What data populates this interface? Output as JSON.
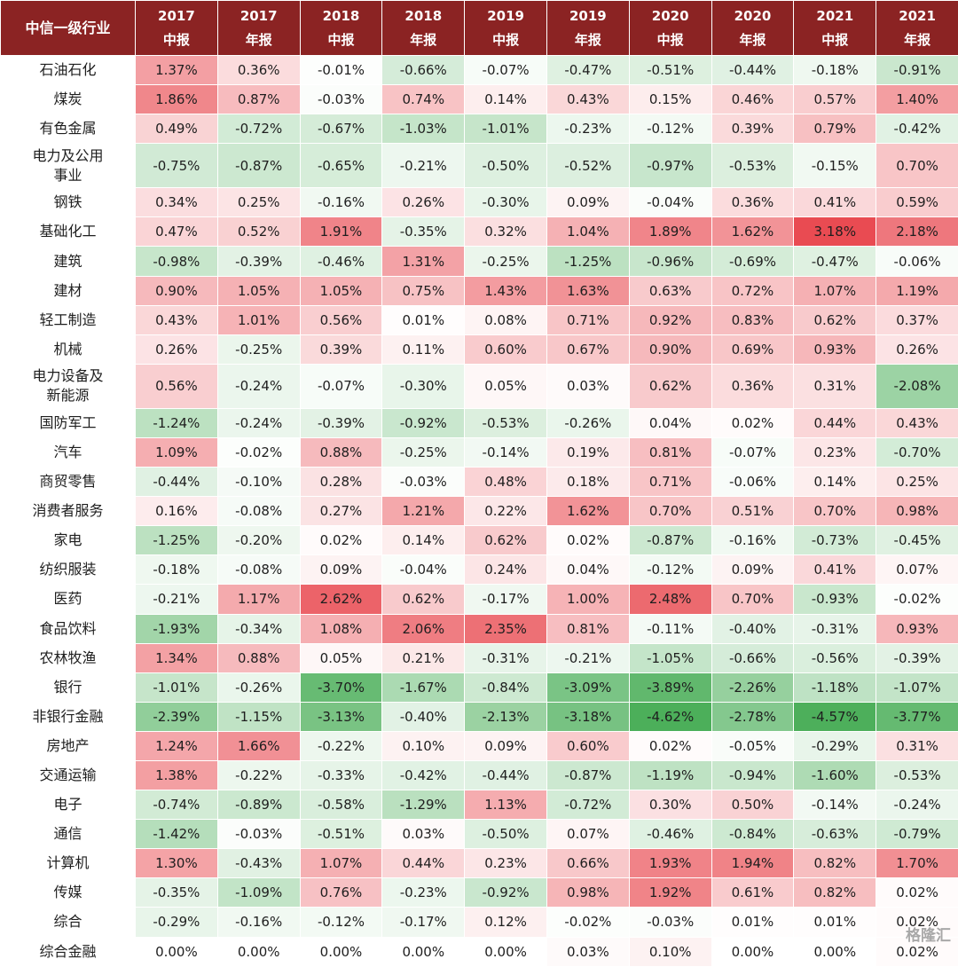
{
  "chart_data": {
    "type": "table",
    "header_label": "中信一级行业",
    "columns": [
      {
        "year": "2017",
        "type": "中报"
      },
      {
        "year": "2017",
        "type": "年报"
      },
      {
        "year": "2018",
        "type": "中报"
      },
      {
        "year": "2018",
        "type": "年报"
      },
      {
        "year": "2019",
        "type": "中报"
      },
      {
        "year": "2019",
        "type": "年报"
      },
      {
        "year": "2020",
        "type": "中报"
      },
      {
        "year": "2020",
        "type": "年报"
      },
      {
        "year": "2021",
        "type": "中报"
      },
      {
        "year": "2021",
        "type": "年报"
      }
    ],
    "rows": [
      {
        "industry": "石油石化",
        "values": [
          1.37,
          0.36,
          -0.01,
          -0.66,
          -0.07,
          -0.47,
          -0.51,
          -0.44,
          -0.18,
          -0.91
        ]
      },
      {
        "industry": "煤炭",
        "values": [
          1.86,
          0.87,
          -0.03,
          0.74,
          0.14,
          0.43,
          0.15,
          0.46,
          0.57,
          1.4
        ]
      },
      {
        "industry": "有色金属",
        "values": [
          0.49,
          -0.72,
          -0.67,
          -1.03,
          -1.01,
          -0.23,
          -0.12,
          0.39,
          0.79,
          -0.42
        ]
      },
      {
        "industry": "电力及公用事业",
        "values": [
          -0.75,
          -0.87,
          -0.65,
          -0.21,
          -0.5,
          -0.52,
          -0.97,
          -0.53,
          -0.15,
          0.7
        ]
      },
      {
        "industry": "钢铁",
        "values": [
          0.34,
          0.25,
          -0.16,
          0.26,
          -0.3,
          0.09,
          -0.04,
          0.36,
          0.41,
          0.59
        ]
      },
      {
        "industry": "基础化工",
        "values": [
          0.47,
          0.52,
          1.91,
          -0.35,
          0.32,
          1.04,
          1.89,
          1.62,
          3.18,
          2.18
        ]
      },
      {
        "industry": "建筑",
        "values": [
          -0.98,
          -0.39,
          -0.46,
          1.31,
          -0.25,
          -1.25,
          -0.96,
          -0.69,
          -0.47,
          -0.06
        ]
      },
      {
        "industry": "建材",
        "values": [
          0.9,
          1.05,
          1.05,
          0.75,
          1.43,
          1.63,
          0.63,
          0.72,
          1.07,
          1.19
        ]
      },
      {
        "industry": "轻工制造",
        "values": [
          0.43,
          1.01,
          0.56,
          0.01,
          0.08,
          0.71,
          0.92,
          0.83,
          0.62,
          0.37
        ]
      },
      {
        "industry": "机械",
        "values": [
          0.26,
          -0.25,
          0.39,
          0.11,
          0.6,
          0.67,
          0.9,
          0.69,
          0.93,
          0.26
        ]
      },
      {
        "industry": "电力设备及新能源",
        "values": [
          0.56,
          -0.24,
          -0.07,
          -0.3,
          0.05,
          0.03,
          0.62,
          0.36,
          0.31,
          -2.08
        ]
      },
      {
        "industry": "国防军工",
        "values": [
          -1.24,
          -0.24,
          -0.39,
          -0.92,
          -0.53,
          -0.26,
          0.04,
          0.02,
          0.44,
          0.43
        ]
      },
      {
        "industry": "汽车",
        "values": [
          1.09,
          -0.02,
          0.88,
          -0.25,
          -0.14,
          0.19,
          0.81,
          -0.07,
          0.23,
          -0.7
        ]
      },
      {
        "industry": "商贸零售",
        "values": [
          -0.44,
          -0.1,
          0.28,
          -0.03,
          0.48,
          0.18,
          0.71,
          -0.06,
          0.14,
          0.25
        ]
      },
      {
        "industry": "消费者服务",
        "values": [
          0.16,
          -0.08,
          0.27,
          1.21,
          0.22,
          1.62,
          0.7,
          0.51,
          0.7,
          0.98
        ]
      },
      {
        "industry": "家电",
        "values": [
          -1.25,
          -0.2,
          0.02,
          0.14,
          0.62,
          0.02,
          -0.87,
          -0.16,
          -0.73,
          -0.45
        ]
      },
      {
        "industry": "纺织服装",
        "values": [
          -0.18,
          -0.08,
          0.09,
          -0.04,
          0.24,
          0.04,
          -0.12,
          0.09,
          0.41,
          0.07
        ]
      },
      {
        "industry": "医药",
        "values": [
          -0.21,
          1.17,
          2.62,
          0.62,
          -0.17,
          1.0,
          2.48,
          0.7,
          -0.93,
          -0.02
        ]
      },
      {
        "industry": "食品饮料",
        "values": [
          -1.93,
          -0.34,
          1.08,
          2.06,
          2.35,
          0.81,
          -0.11,
          -0.4,
          -0.31,
          0.93
        ]
      },
      {
        "industry": "农林牧渔",
        "values": [
          1.34,
          0.88,
          0.05,
          0.21,
          -0.31,
          -0.21,
          -1.05,
          -0.66,
          -0.56,
          -0.39
        ]
      },
      {
        "industry": "银行",
        "values": [
          -1.01,
          -0.26,
          -3.7,
          -1.67,
          -0.84,
          -3.09,
          -3.89,
          -2.26,
          -1.18,
          -1.07
        ]
      },
      {
        "industry": "非银行金融",
        "values": [
          -2.39,
          -1.15,
          -3.13,
          -0.4,
          -2.13,
          -3.18,
          -4.62,
          -2.78,
          -4.57,
          -3.77
        ]
      },
      {
        "industry": "房地产",
        "values": [
          1.24,
          1.66,
          -0.22,
          0.1,
          0.09,
          0.6,
          0.02,
          -0.05,
          -0.29,
          0.31
        ]
      },
      {
        "industry": "交通运输",
        "values": [
          1.38,
          -0.22,
          -0.33,
          -0.42,
          -0.44,
          -0.87,
          -1.19,
          -0.94,
          -1.6,
          -0.53
        ]
      },
      {
        "industry": "电子",
        "values": [
          -0.74,
          -0.89,
          -0.58,
          -1.29,
          1.13,
          -0.72,
          0.3,
          0.5,
          -0.14,
          -0.24
        ]
      },
      {
        "industry": "通信",
        "values": [
          -1.42,
          -0.03,
          -0.51,
          0.03,
          -0.5,
          0.07,
          -0.46,
          -0.84,
          -0.63,
          -0.79
        ]
      },
      {
        "industry": "计算机",
        "values": [
          1.3,
          -0.43,
          1.07,
          0.44,
          0.23,
          0.66,
          1.93,
          1.94,
          0.82,
          1.7
        ]
      },
      {
        "industry": "传媒",
        "values": [
          -0.35,
          -1.09,
          0.76,
          -0.23,
          -0.92,
          0.98,
          1.92,
          0.61,
          0.82,
          0.02
        ]
      },
      {
        "industry": "综合",
        "values": [
          -0.29,
          -0.16,
          -0.12,
          -0.17,
          0.12,
          -0.02,
          -0.03,
          0.01,
          0.01,
          0.02
        ]
      },
      {
        "industry": "综合金融",
        "values": [
          0.0,
          0.0,
          0.0,
          0.0,
          0.0,
          0.03,
          0.1,
          0.0,
          0.0,
          0.02
        ]
      }
    ],
    "colors": {
      "header_bg": "#8b2323",
      "positive_max": "#e8464d",
      "negative_max": "#4caf5a",
      "neutral": "#ffffff"
    }
  },
  "watermark": "格隆汇"
}
